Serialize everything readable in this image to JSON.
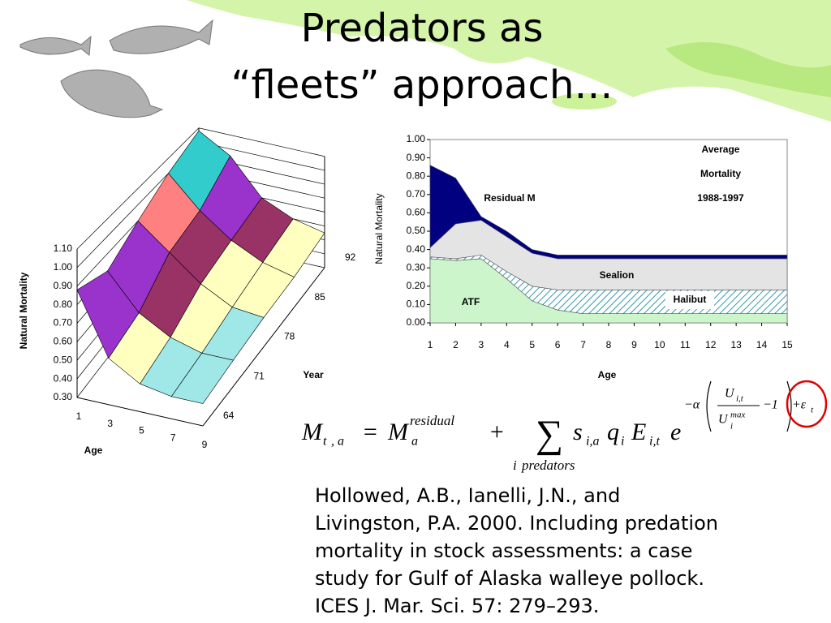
{
  "title": [
    "Predators as",
    "“fleets” approach…"
  ],
  "chart_data": [
    {
      "type": "surface3d",
      "zlabel": "Natural Mortality",
      "xlabel": "Age",
      "ylabel": "Year",
      "x": [
        1,
        3,
        5,
        7,
        9
      ],
      "y": [
        64,
        71,
        78,
        85,
        92
      ],
      "values": [
        [
          0.88,
          0.55,
          0.45,
          0.42,
          0.42
        ],
        [
          0.8,
          0.6,
          0.5,
          0.45,
          0.45
        ],
        [
          0.9,
          0.75,
          0.6,
          0.5,
          0.48
        ],
        [
          1.0,
          0.8,
          0.65,
          0.55,
          0.5
        ],
        [
          1.08,
          0.95,
          0.7,
          0.6,
          0.55
        ]
      ],
      "zlim": [
        0.3,
        1.1
      ],
      "zticks": [
        {
          "value": 0.3,
          "label": "0.30"
        },
        {
          "value": 0.4,
          "label": "0.40"
        },
        {
          "value": 0.5,
          "label": "0.50"
        },
        {
          "value": 0.6,
          "label": "0.60"
        },
        {
          "value": 0.7,
          "label": "0.70"
        },
        {
          "value": 0.8,
          "label": "0.80"
        },
        {
          "value": 0.9,
          "label": "0.90"
        },
        {
          "value": 1.0,
          "label": "1.00"
        },
        {
          "value": 1.1,
          "label": "1.10"
        }
      ],
      "colors": [
        "#9999ff",
        "#a0e8e8",
        "#ffffc0",
        "#993366",
        "#9933cc",
        "#ff8080",
        "#33cccc",
        "#99ffff"
      ],
      "grid": true
    },
    {
      "type": "stacked_area",
      "ylabel": "Natural Mortality",
      "xlabel": "Age",
      "annotation": [
        "Average",
        "Mortality",
        "1988-1997"
      ],
      "x": [
        1,
        2,
        3,
        4,
        5,
        6,
        7,
        8,
        9,
        10,
        11,
        12,
        13,
        14,
        15
      ],
      "series": [
        {
          "name": "ATF",
          "color": "#ccf5cc",
          "values": [
            0.35,
            0.34,
            0.35,
            0.24,
            0.12,
            0.07,
            0.05,
            0.05,
            0.05,
            0.05,
            0.05,
            0.05,
            0.05,
            0.05,
            0.05
          ]
        },
        {
          "name": "Halibut",
          "color": "#3399aa",
          "values": [
            0.01,
            0.01,
            0.02,
            0.04,
            0.08,
            0.11,
            0.13,
            0.13,
            0.13,
            0.13,
            0.13,
            0.13,
            0.13,
            0.13,
            0.13
          ]
        },
        {
          "name": "Sealion",
          "color": "#e4e4e4",
          "values": [
            0.05,
            0.19,
            0.19,
            0.19,
            0.18,
            0.17,
            0.17,
            0.17,
            0.17,
            0.17,
            0.17,
            0.17,
            0.17,
            0.17,
            0.17
          ]
        },
        {
          "name": "Residual M",
          "color": "#000080",
          "values": [
            0.45,
            0.25,
            0.02,
            0.03,
            0.02,
            0.02,
            0.02,
            0.02,
            0.02,
            0.02,
            0.02,
            0.02,
            0.02,
            0.02,
            0.02
          ]
        }
      ],
      "xlim": [
        1,
        15
      ],
      "xticks": [
        1,
        2,
        3,
        4,
        5,
        6,
        7,
        8,
        9,
        10,
        11,
        12,
        13,
        14,
        15
      ],
      "ylim": [
        0,
        1
      ],
      "yticks": [
        {
          "value": 0,
          "label": "0.00"
        },
        {
          "value": 0.1,
          "label": "0.10"
        },
        {
          "value": 0.2,
          "label": "0.20"
        },
        {
          "value": 0.3,
          "label": "0.30"
        },
        {
          "value": 0.4,
          "label": "0.40"
        },
        {
          "value": 0.5,
          "label": "0.50"
        },
        {
          "value": 0.6,
          "label": "0.60"
        },
        {
          "value": 0.7,
          "label": "0.70"
        },
        {
          "value": 0.8,
          "label": "0.80"
        },
        {
          "value": 0.9,
          "label": "0.90"
        },
        {
          "value": 1,
          "label": "1.00"
        }
      ]
    }
  ],
  "equation": {
    "parts": [
      "M",
      "t",
      ",",
      "a",
      "=",
      "M",
      "residual",
      "a",
      "+",
      "∑",
      "i",
      "predators",
      "s",
      "i,a",
      "q",
      "i",
      "E",
      "i,t",
      "e",
      "−α",
      "U",
      "i,t",
      "U",
      "i",
      "max",
      "−1",
      "+ε",
      "t"
    ]
  },
  "citation": [
    "Hollowed, A.B., Ianelli, J.N., and",
    "Livingston, P.A. 2000. Including predation",
    "mortality in stock assessments: a case",
    "study for Gulf of Alaska walleye pollock.",
    "ICES J. Mar. Sci. 57: 279–293."
  ]
}
